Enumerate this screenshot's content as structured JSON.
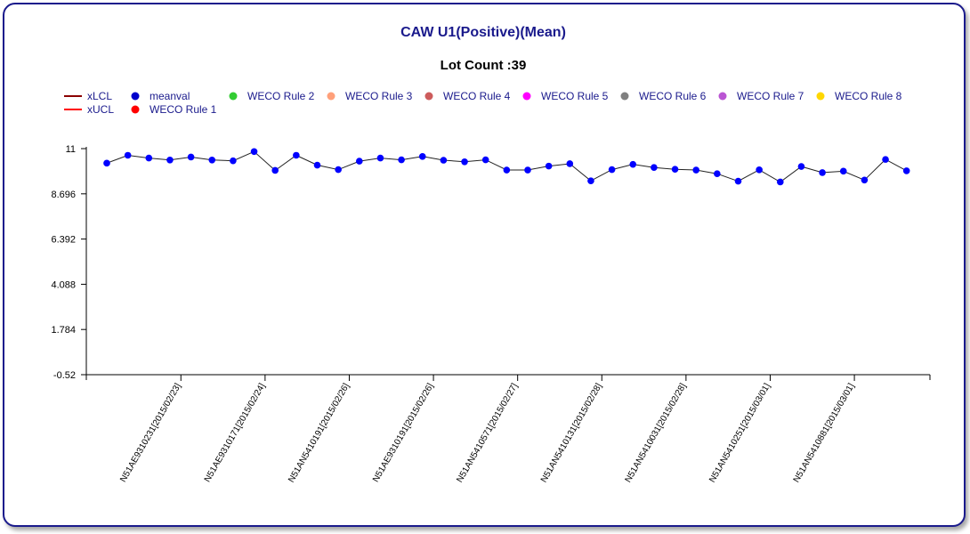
{
  "chart_data": {
    "type": "line",
    "title": "CAW U1(Positive)(Mean)",
    "subtitle": "Lot Count :39",
    "legend": [
      {
        "name": "xLCL",
        "kind": "line",
        "color": "#8b0000"
      },
      {
        "name": "xUCL",
        "kind": "line",
        "color": "#ff0000"
      },
      {
        "name": "meanval",
        "kind": "dot",
        "color": "#0000cc"
      },
      {
        "name": "WECO Rule 1",
        "kind": "dot",
        "color": "#ff0000"
      },
      {
        "name": "WECO Rule 2",
        "kind": "dot",
        "color": "#33cc33"
      },
      {
        "name": "WECO Rule 3",
        "kind": "dot",
        "color": "#ffa07a"
      },
      {
        "name": "WECO Rule 4",
        "kind": "dot",
        "color": "#cd5c5c"
      },
      {
        "name": "WECO Rule 5",
        "kind": "dot",
        "color": "#ff00ff"
      },
      {
        "name": "WECO Rule 6",
        "kind": "dot",
        "color": "#808080"
      },
      {
        "name": "WECO Rule 7",
        "kind": "dot",
        "color": "#ba55d3"
      },
      {
        "name": "WECO Rule 8",
        "kind": "dot",
        "color": "#ffd700"
      }
    ],
    "y_ticks": [
      "11",
      "8.696",
      "6.392",
      "4.088",
      "1.784",
      "-0.52"
    ],
    "ylim": [
      -0.52,
      11
    ],
    "x_tick_labels": [
      "N51AE9310231[2015/02/23]",
      "N51AE9310171[2015/02/24]",
      "N51AN5410191[2015/02/26]",
      "N51AE9310191[2015/02/26]",
      "N51AN5410571[2015/02/27]",
      "N51AN5410131[2015/02/28]",
      "N51AN5410031[2015/02/28]",
      "N51AN5410251[2015/03/01]",
      "N51AN5410881[2015/03/01]"
    ],
    "x_tick_indices": [
      4,
      8,
      12,
      16,
      20,
      24,
      28,
      32,
      36
    ],
    "series": [
      {
        "name": "meanval",
        "color": "#0000ff",
        "values": [
          10.26,
          10.66,
          10.52,
          10.42,
          10.57,
          10.42,
          10.38,
          10.85,
          9.89,
          10.66,
          10.16,
          9.93,
          10.36,
          10.52,
          10.43,
          10.6,
          10.41,
          10.33,
          10.43,
          9.91,
          9.91,
          10.11,
          10.23,
          9.36,
          9.93,
          10.2,
          10.04,
          9.95,
          9.91,
          9.72,
          9.34,
          9.92,
          9.3,
          10.09,
          9.78,
          9.85,
          9.4,
          10.45,
          9.87
        ]
      }
    ],
    "grid": false
  }
}
